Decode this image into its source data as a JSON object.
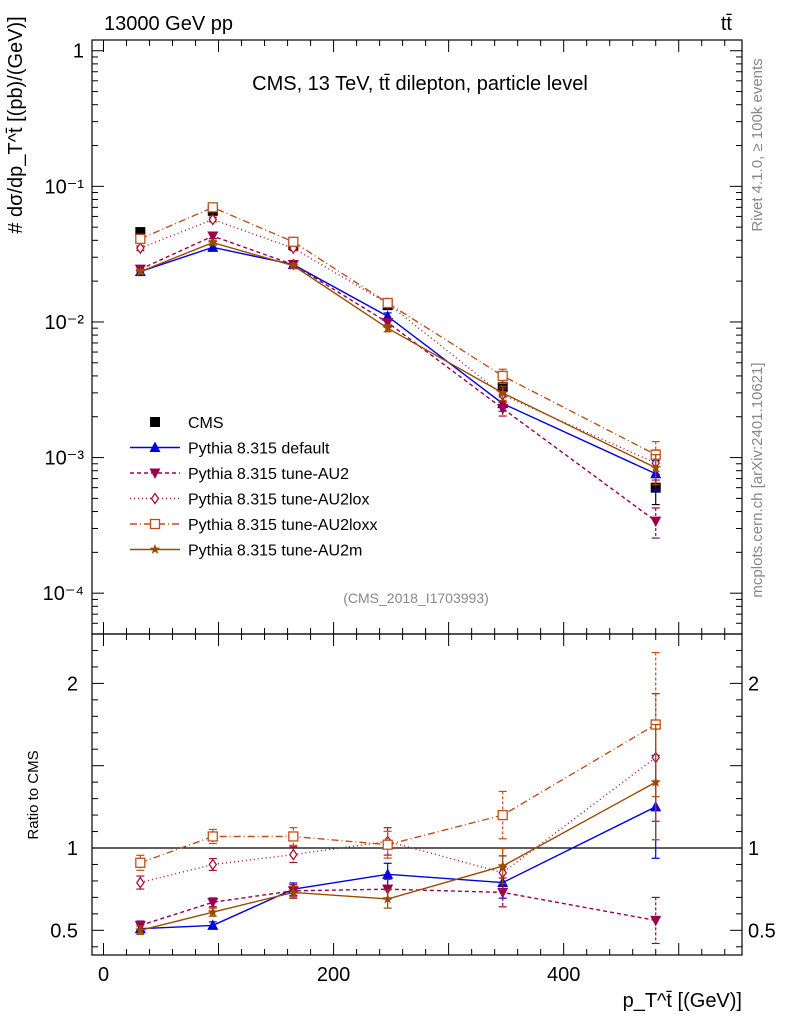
{
  "header": {
    "energy_label": "13000 GeV pp",
    "process_label": "tt̄"
  },
  "side_labels": {
    "rivet": "Rivet 4.1.0, ≥ 100k events",
    "mcplots": "mcplots.cern.ch [arXiv:2401.10621]"
  },
  "chart_data": [
    {
      "type": "line",
      "panel": "main",
      "title": "CMS, 13 TeV, tt̄ dilepton, particle level",
      "analysis_id": "(CMS_2018_I1703993)",
      "ylabel": "# dσ/dp_T^t̄ [(pb)/(GeV)]",
      "yscale": "log",
      "ylim": [
        5e-05,
        1.2
      ],
      "ytick_values": [
        0.0001,
        0.001,
        0.01,
        0.1,
        1
      ],
      "ytick_labels": [
        "10⁻⁴",
        "10⁻³",
        "10⁻²",
        "10⁻¹",
        "1"
      ],
      "xlim": [
        -10,
        555
      ],
      "legend_position": "lower-left",
      "x": [
        32,
        95,
        165,
        247,
        347,
        480
      ],
      "series": [
        {
          "name": "CMS",
          "color": "#000000",
          "marker": "square-filled",
          "dash": "none",
          "values": [
            0.046,
            0.066,
            0.037,
            0.0133,
            0.0033,
            0.0006
          ]
        },
        {
          "name": "Pythia 8.315 default",
          "color": "#0000dd",
          "marker": "triangle-up",
          "dash": "solid",
          "values": [
            0.0235,
            0.0355,
            0.0265,
            0.011,
            0.0025,
            0.00076
          ]
        },
        {
          "name": "Pythia 8.315 tune-AU2",
          "color": "#99004d",
          "marker": "triangle-down",
          "dash": "4,3",
          "values": [
            0.0245,
            0.043,
            0.0265,
            0.0099,
            0.0023,
            0.00034
          ]
        },
        {
          "name": "Pythia 8.315 tune-AU2lox",
          "color": "#aa1133",
          "marker": "diamond-open",
          "dash": "1,3",
          "values": [
            0.035,
            0.057,
            0.035,
            0.0137,
            0.0029,
            0.00091
          ]
        },
        {
          "name": "Pythia 8.315 tune-AU2loxx",
          "color": "#c0501a",
          "marker": "square-open",
          "dash": "7,3,1,3",
          "values": [
            0.041,
            0.07,
            0.039,
            0.0138,
            0.004,
            0.00105
          ]
        },
        {
          "name": "Pythia 8.315 tune-AU2m",
          "color": "#994c00",
          "marker": "star",
          "dash": "solid",
          "values": [
            0.0235,
            0.0385,
            0.026,
            0.009,
            0.003,
            0.00084
          ]
        }
      ]
    },
    {
      "type": "line",
      "panel": "ratio",
      "ylabel": "Ratio to CMS",
      "ylim": [
        0.35,
        2.3
      ],
      "ytick_values": [
        0.5,
        1,
        2
      ],
      "ytick_labels": [
        "0.5",
        "1",
        "2"
      ],
      "xlabel": "p_T^t̄ [(GeV)]",
      "xlim": [
        -10,
        555
      ],
      "xtick_values": [
        0,
        200,
        400
      ],
      "xtick_labels": [
        "0",
        "200",
        "400"
      ],
      "reference_line": 1,
      "x": [
        32,
        95,
        165,
        247,
        347,
        480
      ],
      "series": [
        {
          "name": "Pythia 8.315 default",
          "color": "#0000dd",
          "marker": "triangle-up",
          "dash": "solid",
          "values": [
            0.51,
            0.53,
            0.75,
            0.84,
            0.79,
            1.25
          ]
        },
        {
          "name": "Pythia 8.315 tune-AU2",
          "color": "#99004d",
          "marker": "triangle-down",
          "dash": "4,3",
          "values": [
            0.53,
            0.67,
            0.74,
            0.75,
            0.73,
            0.56
          ]
        },
        {
          "name": "Pythia 8.315 tune-AU2lox",
          "color": "#aa1133",
          "marker": "diamond-open",
          "dash": "1,3",
          "values": [
            0.79,
            0.9,
            0.96,
            1.04,
            0.85,
            1.55
          ]
        },
        {
          "name": "Pythia 8.315 tune-AU2loxx",
          "color": "#c0501a",
          "marker": "square-open",
          "dash": "7,3,1,3",
          "values": [
            0.91,
            1.07,
            1.07,
            1.02,
            1.2,
            1.75
          ]
        },
        {
          "name": "Pythia 8.315 tune-AU2m",
          "color": "#994c00",
          "marker": "star",
          "dash": "solid",
          "values": [
            0.5,
            0.61,
            0.73,
            0.69,
            0.89,
            1.4
          ]
        }
      ]
    }
  ]
}
